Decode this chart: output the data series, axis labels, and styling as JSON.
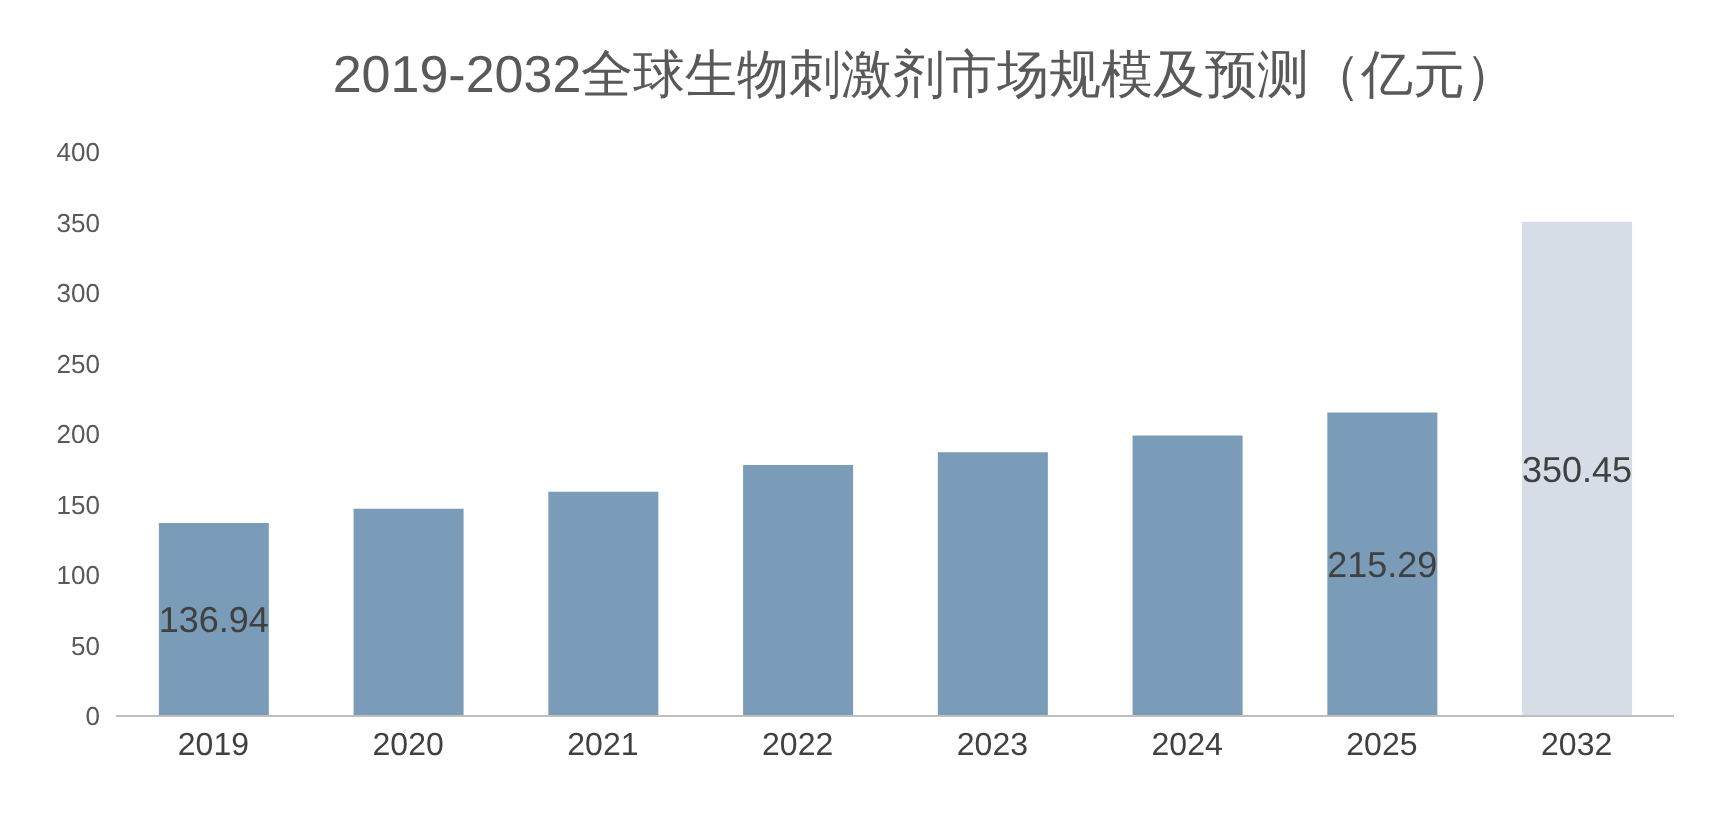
{
  "chart_data": {
    "type": "bar",
    "title": "2019-2032全球生物刺激剂市场规模及预测（亿元）",
    "categories": [
      "2019",
      "2020",
      "2021",
      "2022",
      "2023",
      "2024",
      "2025",
      "2032"
    ],
    "values": [
      136.94,
      147,
      159,
      178,
      187,
      199,
      215.29,
      350.45
    ],
    "colors": [
      "#7a9cb8",
      "#7a9cb8",
      "#7a9cb8",
      "#7a9cb8",
      "#7a9cb8",
      "#7a9cb8",
      "#7a9cb8",
      "#d6dde6"
    ],
    "value_labels": [
      "136.94",
      null,
      null,
      null,
      null,
      null,
      "215.29",
      "350.45"
    ],
    "ylim": [
      0,
      400
    ],
    "yticks": [
      0,
      50,
      100,
      150,
      200,
      250,
      300,
      350,
      400
    ],
    "grid": false,
    "legend": false
  }
}
